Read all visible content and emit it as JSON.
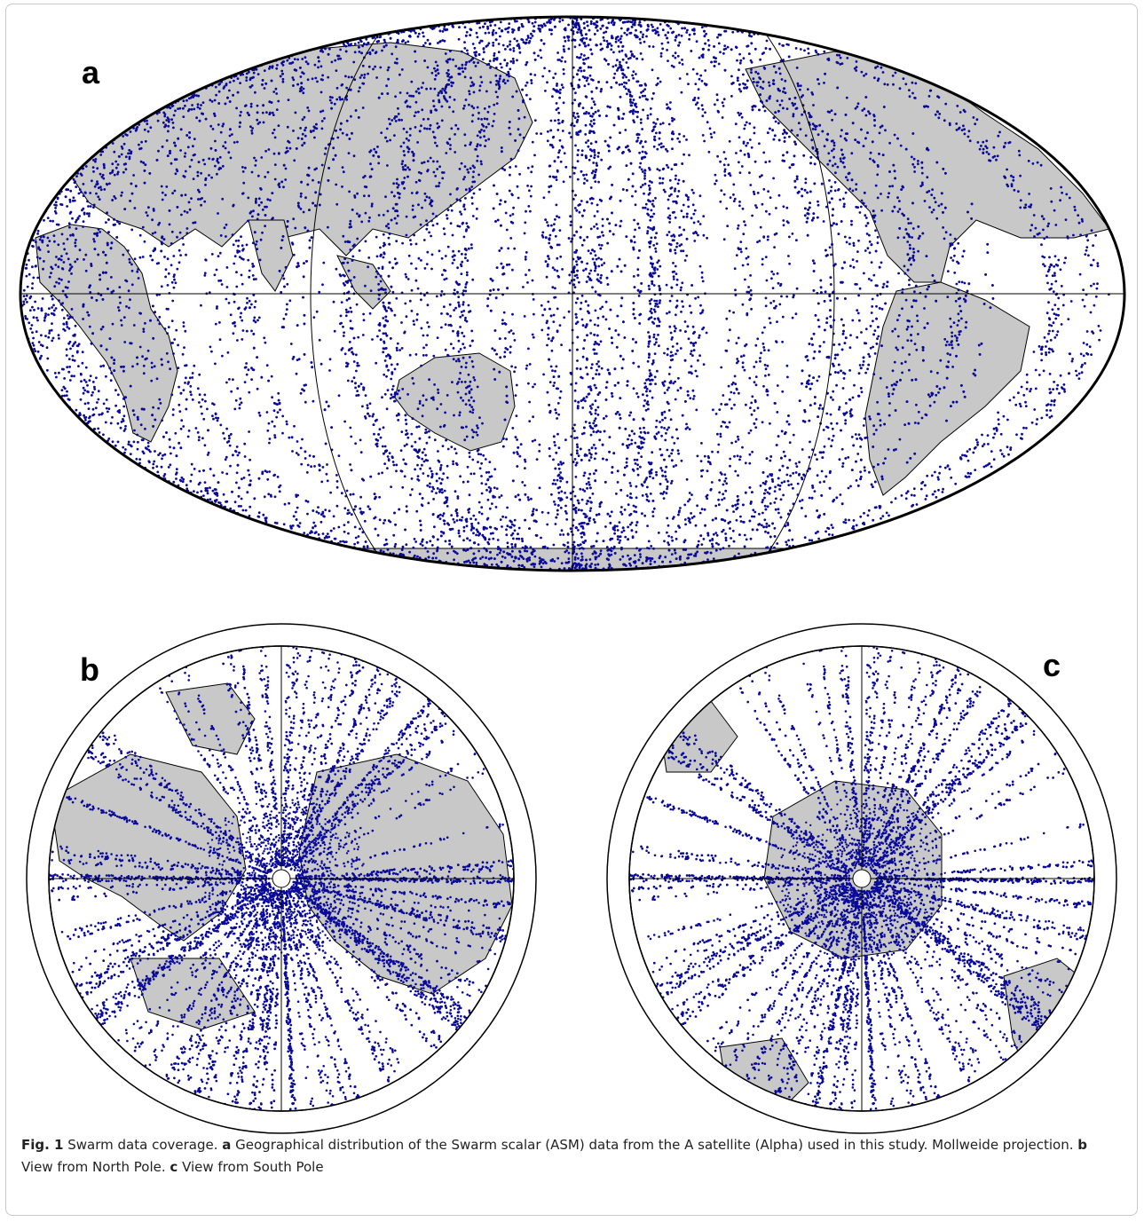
{
  "figure": {
    "panels": [
      {
        "id": "a",
        "label": "a",
        "projection": "Mollweide"
      },
      {
        "id": "b",
        "label": "b",
        "projection": "View from North Pole"
      },
      {
        "id": "c",
        "label": "c",
        "projection": "View from South Pole"
      }
    ],
    "caption": {
      "fig_label": "Fig. 1",
      "title": " Swarm data coverage. ",
      "a_label": "a",
      "a_text": " Geographical distribution of the Swarm scalar (ASM) data from the A satellite (Alpha) used in this study. Mollweide projection. ",
      "b_label": "b",
      "b_text": " View from North Pole. ",
      "c_label": "c",
      "c_text": " View from South Pole"
    },
    "colors": {
      "data_points": "#0a0a9a",
      "land": "#c8c8c8",
      "ocean": "#ffffff",
      "coastline": "#000000",
      "frame": "#c8c8c8"
    }
  }
}
